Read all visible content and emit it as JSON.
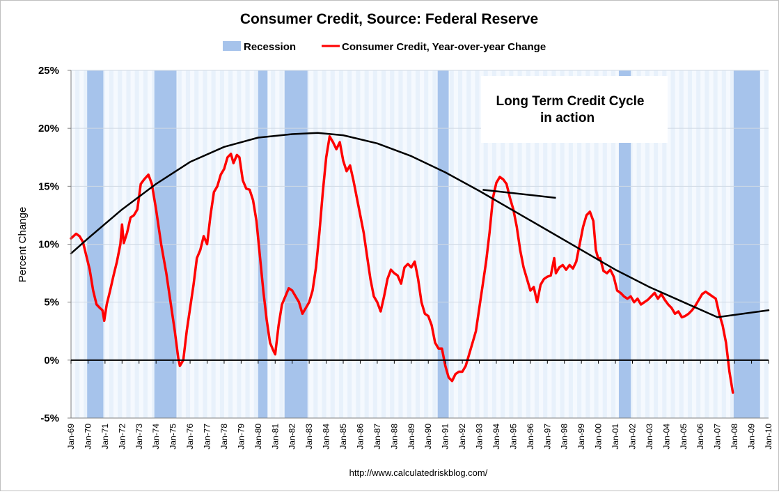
{
  "chart_data": {
    "type": "line",
    "title": "Consumer Credit, Source: Federal Reserve",
    "ylabel": "Percent Change",
    "xlabel": "",
    "ylim": [
      -5,
      25
    ],
    "xlim": [
      1969.0,
      2010.0
    ],
    "y_ticks": [
      {
        "value": 25,
        "label": "25%"
      },
      {
        "value": 20,
        "label": "20%"
      },
      {
        "value": 15,
        "label": "15%"
      },
      {
        "value": 10,
        "label": "10%"
      },
      {
        "value": 5,
        "label": "5%"
      },
      {
        "value": 0,
        "label": "0%"
      },
      {
        "value": -5,
        "label": "-5%"
      }
    ],
    "x_ticks": [
      {
        "value": 1969,
        "label": "Jan-69"
      },
      {
        "value": 1970,
        "label": "Jan-70"
      },
      {
        "value": 1971,
        "label": "Jan-71"
      },
      {
        "value": 1972,
        "label": "Jan-72"
      },
      {
        "value": 1973,
        "label": "Jan-73"
      },
      {
        "value": 1974,
        "label": "Jan-74"
      },
      {
        "value": 1975,
        "label": "Jan-75"
      },
      {
        "value": 1976,
        "label": "Jan-76"
      },
      {
        "value": 1977,
        "label": "Jan-77"
      },
      {
        "value": 1978,
        "label": "Jan-78"
      },
      {
        "value": 1979,
        "label": "Jan-79"
      },
      {
        "value": 1980,
        "label": "Jan-80"
      },
      {
        "value": 1981,
        "label": "Jan-81"
      },
      {
        "value": 1982,
        "label": "Jan-82"
      },
      {
        "value": 1983,
        "label": "Jan-83"
      },
      {
        "value": 1984,
        "label": "Jan-84"
      },
      {
        "value": 1985,
        "label": "Jan-85"
      },
      {
        "value": 1986,
        "label": "Jan-86"
      },
      {
        "value": 1987,
        "label": "Jan-87"
      },
      {
        "value": 1988,
        "label": "Jan-88"
      },
      {
        "value": 1989,
        "label": "Jan-89"
      },
      {
        "value": 1990,
        "label": "Jan-90"
      },
      {
        "value": 1991,
        "label": "Jan-91"
      },
      {
        "value": 1992,
        "label": "Jan-92"
      },
      {
        "value": 1993,
        "label": "Jan-93"
      },
      {
        "value": 1994,
        "label": "Jan-94"
      },
      {
        "value": 1995,
        "label": "Jan-95"
      },
      {
        "value": 1996,
        "label": "Jan-96"
      },
      {
        "value": 1997,
        "label": "Jan-97"
      },
      {
        "value": 1998,
        "label": "Jan-98"
      },
      {
        "value": 1999,
        "label": "Jan-99"
      },
      {
        "value": 2000,
        "label": "Jan-00"
      },
      {
        "value": 2001,
        "label": "Jan-01"
      },
      {
        "value": 2002,
        "label": "Jan-02"
      },
      {
        "value": 2003,
        "label": "Jan-03"
      },
      {
        "value": 2004,
        "label": "Jan-04"
      },
      {
        "value": 2005,
        "label": "Jan-05"
      },
      {
        "value": 2006,
        "label": "Jan-06"
      },
      {
        "value": 2007,
        "label": "Jan-07"
      },
      {
        "value": 2008,
        "label": "Jan-08"
      },
      {
        "value": 2009,
        "label": "Jan-09"
      },
      {
        "value": 2010,
        "label": "Jan-10"
      }
    ],
    "legend_placement": "top",
    "legend": [
      {
        "name": "Recession",
        "type": "band",
        "color": "#a6c3eb"
      },
      {
        "name": "Consumer Credit, Year-over-year Change",
        "type": "line",
        "color": "#ff0000"
      }
    ],
    "recessions": [
      [
        1969.95,
        1970.9
      ],
      [
        1973.9,
        1975.2
      ],
      [
        1980.0,
        1980.55
      ],
      [
        1981.55,
        1982.9
      ],
      [
        1990.55,
        1991.2
      ],
      [
        2001.2,
        2001.9
      ],
      [
        2007.95,
        2009.5
      ]
    ],
    "series": [
      {
        "name": "Consumer Credit, Year-over-year Change",
        "color": "#ff0000",
        "points": [
          [
            1969.0,
            10.5
          ],
          [
            1969.3,
            10.9
          ],
          [
            1969.5,
            10.7
          ],
          [
            1969.7,
            10.2
          ],
          [
            1969.9,
            9.0
          ],
          [
            1970.1,
            7.8
          ],
          [
            1970.3,
            6.0
          ],
          [
            1970.5,
            4.8
          ],
          [
            1970.7,
            4.5
          ],
          [
            1970.85,
            4.3
          ],
          [
            1970.95,
            3.4
          ],
          [
            1971.1,
            4.8
          ],
          [
            1971.3,
            6.0
          ],
          [
            1971.5,
            7.3
          ],
          [
            1971.7,
            8.5
          ],
          [
            1971.9,
            10.0
          ],
          [
            1972.0,
            11.7
          ],
          [
            1972.1,
            10.1
          ],
          [
            1972.3,
            11.0
          ],
          [
            1972.5,
            12.3
          ],
          [
            1972.7,
            12.5
          ],
          [
            1972.9,
            13.0
          ],
          [
            1973.1,
            15.2
          ],
          [
            1973.3,
            15.6
          ],
          [
            1973.55,
            16.0
          ],
          [
            1973.75,
            15.2
          ],
          [
            1974.0,
            13.0
          ],
          [
            1974.3,
            10.0
          ],
          [
            1974.6,
            7.5
          ],
          [
            1974.9,
            4.5
          ],
          [
            1975.1,
            2.5
          ],
          [
            1975.3,
            0.2
          ],
          [
            1975.4,
            -0.5
          ],
          [
            1975.6,
            0.0
          ],
          [
            1975.8,
            2.5
          ],
          [
            1976.0,
            4.5
          ],
          [
            1976.2,
            6.5
          ],
          [
            1976.4,
            8.8
          ],
          [
            1976.6,
            9.5
          ],
          [
            1976.8,
            10.7
          ],
          [
            1977.0,
            10.0
          ],
          [
            1977.2,
            12.5
          ],
          [
            1977.4,
            14.5
          ],
          [
            1977.6,
            15.0
          ],
          [
            1977.8,
            16.0
          ],
          [
            1978.0,
            16.5
          ],
          [
            1978.2,
            17.5
          ],
          [
            1978.4,
            17.8
          ],
          [
            1978.55,
            17.0
          ],
          [
            1978.75,
            17.7
          ],
          [
            1978.9,
            17.5
          ],
          [
            1979.1,
            15.5
          ],
          [
            1979.3,
            14.8
          ],
          [
            1979.5,
            14.7
          ],
          [
            1979.7,
            13.8
          ],
          [
            1979.9,
            12.0
          ],
          [
            1980.1,
            9.0
          ],
          [
            1980.3,
            6.0
          ],
          [
            1980.5,
            3.5
          ],
          [
            1980.7,
            1.5
          ],
          [
            1980.9,
            0.8
          ],
          [
            1981.0,
            0.5
          ],
          [
            1981.2,
            3.0
          ],
          [
            1981.4,
            4.8
          ],
          [
            1981.6,
            5.5
          ],
          [
            1981.8,
            6.2
          ],
          [
            1982.0,
            6.0
          ],
          [
            1982.2,
            5.5
          ],
          [
            1982.4,
            5.0
          ],
          [
            1982.6,
            4.0
          ],
          [
            1982.8,
            4.5
          ],
          [
            1983.0,
            5.0
          ],
          [
            1983.2,
            6.0
          ],
          [
            1983.4,
            8.0
          ],
          [
            1983.6,
            11.0
          ],
          [
            1983.8,
            14.5
          ],
          [
            1984.0,
            17.5
          ],
          [
            1984.2,
            19.3
          ],
          [
            1984.4,
            18.8
          ],
          [
            1984.6,
            18.2
          ],
          [
            1984.8,
            18.8
          ],
          [
            1985.0,
            17.2
          ],
          [
            1985.2,
            16.3
          ],
          [
            1985.4,
            16.8
          ],
          [
            1985.6,
            15.5
          ],
          [
            1985.8,
            14.0
          ],
          [
            1986.0,
            12.5
          ],
          [
            1986.2,
            11.0
          ],
          [
            1986.4,
            9.0
          ],
          [
            1986.6,
            7.0
          ],
          [
            1986.8,
            5.5
          ],
          [
            1987.0,
            5.0
          ],
          [
            1987.2,
            4.2
          ],
          [
            1987.4,
            5.5
          ],
          [
            1987.6,
            7.0
          ],
          [
            1987.8,
            7.8
          ],
          [
            1988.0,
            7.5
          ],
          [
            1988.2,
            7.3
          ],
          [
            1988.4,
            6.6
          ],
          [
            1988.6,
            8.0
          ],
          [
            1988.8,
            8.3
          ],
          [
            1989.0,
            8.0
          ],
          [
            1989.2,
            8.5
          ],
          [
            1989.4,
            7.0
          ],
          [
            1989.6,
            5.0
          ],
          [
            1989.8,
            4.0
          ],
          [
            1990.0,
            3.8
          ],
          [
            1990.2,
            3.0
          ],
          [
            1990.4,
            1.5
          ],
          [
            1990.6,
            1.0
          ],
          [
            1990.8,
            1.0
          ],
          [
            1991.0,
            -0.5
          ],
          [
            1991.2,
            -1.5
          ],
          [
            1991.4,
            -1.8
          ],
          [
            1991.6,
            -1.2
          ],
          [
            1991.8,
            -1.0
          ],
          [
            1992.0,
            -1.0
          ],
          [
            1992.2,
            -0.5
          ],
          [
            1992.4,
            0.5
          ],
          [
            1992.6,
            1.5
          ],
          [
            1992.8,
            2.5
          ],
          [
            1993.0,
            4.5
          ],
          [
            1993.2,
            6.5
          ],
          [
            1993.4,
            8.5
          ],
          [
            1993.6,
            11.0
          ],
          [
            1993.8,
            14.0
          ],
          [
            1994.0,
            15.3
          ],
          [
            1994.2,
            15.8
          ],
          [
            1994.4,
            15.6
          ],
          [
            1994.6,
            15.2
          ],
          [
            1994.8,
            14.0
          ],
          [
            1995.0,
            13.0
          ],
          [
            1995.2,
            11.5
          ],
          [
            1995.4,
            9.5
          ],
          [
            1995.6,
            8.0
          ],
          [
            1995.8,
            7.0
          ],
          [
            1996.0,
            6.0
          ],
          [
            1996.2,
            6.3
          ],
          [
            1996.4,
            5.0
          ],
          [
            1996.6,
            6.5
          ],
          [
            1996.8,
            7.0
          ],
          [
            1997.0,
            7.2
          ],
          [
            1997.2,
            7.3
          ],
          [
            1997.4,
            8.8
          ],
          [
            1997.5,
            7.5
          ],
          [
            1997.7,
            8.0
          ],
          [
            1997.9,
            8.2
          ],
          [
            1998.1,
            7.8
          ],
          [
            1998.3,
            8.2
          ],
          [
            1998.5,
            7.9
          ],
          [
            1998.7,
            8.5
          ],
          [
            1998.9,
            10.0
          ],
          [
            1999.1,
            11.5
          ],
          [
            1999.3,
            12.5
          ],
          [
            1999.5,
            12.8
          ],
          [
            1999.7,
            12.0
          ],
          [
            1999.85,
            9.5
          ],
          [
            2000.0,
            8.7
          ],
          [
            2000.1,
            8.8
          ],
          [
            2000.3,
            7.7
          ],
          [
            2000.5,
            7.5
          ],
          [
            2000.7,
            7.8
          ],
          [
            2000.9,
            7.2
          ],
          [
            2001.1,
            6.0
          ],
          [
            2001.3,
            5.8
          ],
          [
            2001.5,
            5.5
          ],
          [
            2001.7,
            5.3
          ],
          [
            2001.9,
            5.5
          ],
          [
            2002.1,
            5.0
          ],
          [
            2002.3,
            5.3
          ],
          [
            2002.5,
            4.8
          ],
          [
            2002.7,
            5.0
          ],
          [
            2002.9,
            5.2
          ],
          [
            2003.1,
            5.5
          ],
          [
            2003.3,
            5.8
          ],
          [
            2003.5,
            5.3
          ],
          [
            2003.7,
            5.7
          ],
          [
            2003.9,
            5.2
          ],
          [
            2004.1,
            4.8
          ],
          [
            2004.3,
            4.5
          ],
          [
            2004.5,
            4.0
          ],
          [
            2004.7,
            4.2
          ],
          [
            2004.9,
            3.7
          ],
          [
            2005.1,
            3.8
          ],
          [
            2005.3,
            4.0
          ],
          [
            2005.5,
            4.3
          ],
          [
            2005.7,
            4.7
          ],
          [
            2005.9,
            5.2
          ],
          [
            2006.1,
            5.7
          ],
          [
            2006.3,
            5.9
          ],
          [
            2006.5,
            5.7
          ],
          [
            2006.7,
            5.5
          ],
          [
            2006.9,
            5.3
          ],
          [
            2007.1,
            4.0
          ],
          [
            2007.3,
            3.0
          ],
          [
            2007.5,
            1.5
          ],
          [
            2007.7,
            -1.0
          ],
          [
            2007.9,
            -2.8
          ]
        ]
      },
      {
        "name": "",
        "color": "#000000",
        "points": [
          [
            1969.0,
            9.2
          ],
          [
            1970.0,
            10.5
          ],
          [
            1972.0,
            13.0
          ],
          [
            1974.0,
            15.2
          ],
          [
            1976.0,
            17.1
          ],
          [
            1978.0,
            18.4
          ],
          [
            1980.0,
            19.2
          ],
          [
            1982.0,
            19.5
          ],
          [
            1983.5,
            19.6
          ],
          [
            1985.0,
            19.4
          ],
          [
            1987.0,
            18.7
          ],
          [
            1989.0,
            17.6
          ],
          [
            1991.0,
            16.2
          ],
          [
            1993.0,
            14.6
          ],
          [
            1995.0,
            12.9
          ],
          [
            1997.0,
            11.2
          ],
          [
            1999.0,
            9.5
          ],
          [
            2001.0,
            7.8
          ],
          [
            2003.0,
            6.3
          ],
          [
            2005.0,
            5.0
          ],
          [
            2007.0,
            3.7
          ],
          [
            2010.0,
            4.3
          ]
        ]
      }
    ],
    "annotation": {
      "lines": [
        "Long Term Credit Cycle",
        "in action"
      ],
      "arrow_from": [
        1997.5,
        14.0
      ],
      "arrow_to": [
        1993.2,
        14.7
      ]
    }
  },
  "source": "http://www.calculatedriskblog.com/"
}
